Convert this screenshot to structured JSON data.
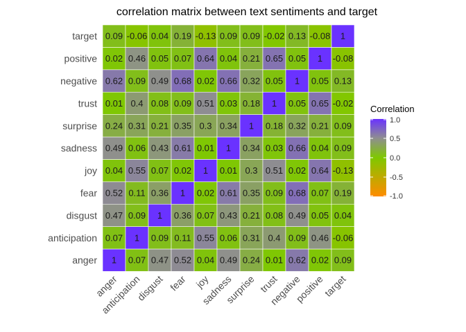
{
  "chart_data": {
    "type": "heatmap",
    "title": "correlation matrix between text sentiments and target",
    "xlabel": "",
    "ylabel": "",
    "x_categories": [
      "anger",
      "anticipation",
      "disgust",
      "fear",
      "joy",
      "sadness",
      "surprise",
      "trust",
      "negative",
      "positive",
      "target"
    ],
    "y_categories": [
      "anger",
      "anticipation",
      "disgust",
      "fear",
      "joy",
      "sadness",
      "surprise",
      "trust",
      "negative",
      "positive",
      "target"
    ],
    "matrix": [
      [
        1,
        0.07,
        0.47,
        0.52,
        0.04,
        0.49,
        0.24,
        0.01,
        0.62,
        0.02,
        0.09
      ],
      [
        0.07,
        1,
        0.09,
        0.11,
        0.55,
        0.06,
        0.31,
        0.4,
        0.09,
        0.46,
        -0.06
      ],
      [
        0.47,
        0.09,
        1,
        0.36,
        0.07,
        0.43,
        0.21,
        0.08,
        0.49,
        0.05,
        0.04
      ],
      [
        0.52,
        0.11,
        0.36,
        1,
        0.02,
        0.61,
        0.35,
        0.09,
        0.68,
        0.07,
        0.19
      ],
      [
        0.04,
        0.55,
        0.07,
        0.02,
        1,
        0.01,
        0.3,
        0.51,
        0.02,
        0.64,
        -0.13
      ],
      [
        0.49,
        0.06,
        0.43,
        0.61,
        0.01,
        1,
        0.34,
        0.03,
        0.66,
        0.04,
        0.09
      ],
      [
        0.24,
        0.31,
        0.21,
        0.35,
        0.3,
        0.34,
        1,
        0.18,
        0.32,
        0.21,
        0.09
      ],
      [
        0.01,
        0.4,
        0.08,
        0.09,
        0.51,
        0.03,
        0.18,
        1,
        0.05,
        0.65,
        -0.02
      ],
      [
        0.62,
        0.09,
        0.49,
        0.68,
        0.02,
        0.66,
        0.32,
        0.05,
        1,
        0.05,
        0.13
      ],
      [
        0.02,
        0.46,
        0.05,
        0.07,
        0.64,
        0.04,
        0.21,
        0.65,
        0.05,
        1,
        -0.08
      ],
      [
        0.09,
        -0.06,
        0.04,
        0.19,
        -0.13,
        0.09,
        0.09,
        -0.02,
        0.13,
        -0.08,
        1
      ]
    ],
    "legend": {
      "title": "Correlation",
      "ticks": [
        1.0,
        0.5,
        0.0,
        -0.5,
        -1.0
      ],
      "tick_labels": [
        "1.0",
        "0.5",
        "0.0",
        "-0.5",
        "-1.0"
      ],
      "range": [
        -1,
        1
      ],
      "position": "right"
    },
    "color_scale": {
      "low": "#ff8c00",
      "mid": "#7fc800",
      "high": "#6a32ff",
      "midpoint": 0
    }
  }
}
